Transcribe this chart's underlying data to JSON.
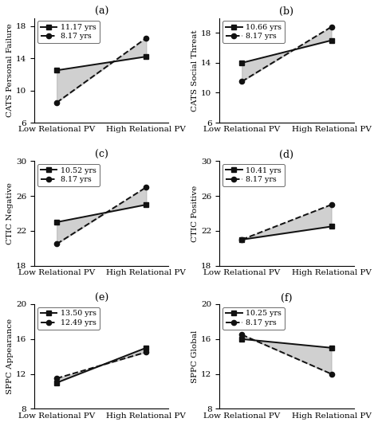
{
  "panels": [
    {
      "label": "(a)",
      "ylabel": "CATS Personal Failure",
      "ylim": [
        6,
        19
      ],
      "yticks": [
        6,
        10,
        14,
        18
      ],
      "legend_lines": [
        "11.17 yrs",
        "8.17 yrs"
      ],
      "line1": [
        12.5,
        14.2
      ],
      "line2": [
        8.5,
        16.5
      ]
    },
    {
      "label": "(b)",
      "ylabel": "CATS Social Threat",
      "ylim": [
        6,
        20
      ],
      "yticks": [
        6,
        10,
        14,
        18
      ],
      "legend_lines": [
        "10.66 yrs",
        "8.17 yrs"
      ],
      "line1": [
        14.0,
        17.0
      ],
      "line2": [
        11.5,
        18.8
      ]
    },
    {
      "label": "(c)",
      "ylabel": "CTIC Negative",
      "ylim": [
        18,
        30
      ],
      "yticks": [
        18,
        22,
        26,
        30
      ],
      "legend_lines": [
        "10.52 yrs",
        "8.17 yrs"
      ],
      "line1": [
        23.0,
        25.0
      ],
      "line2": [
        20.5,
        27.0
      ]
    },
    {
      "label": "(d)",
      "ylabel": "CTIC Positive",
      "ylim": [
        18,
        30
      ],
      "yticks": [
        18,
        22,
        26,
        30
      ],
      "legend_lines": [
        "10.41 yrs",
        "8.17 yrs"
      ],
      "line1": [
        21.0,
        22.5
      ],
      "line2": [
        21.0,
        25.0
      ]
    },
    {
      "label": "(e)",
      "ylabel": "SPPC Appearance",
      "ylim": [
        8,
        20
      ],
      "yticks": [
        8,
        12,
        16,
        20
      ],
      "legend_lines": [
        "13.50 yrs",
        "12.49 yrs"
      ],
      "line1": [
        11.0,
        15.0
      ],
      "line2": [
        11.5,
        14.5
      ]
    },
    {
      "label": "(f)",
      "ylabel": "SPPC Global",
      "ylim": [
        8,
        20
      ],
      "yticks": [
        8,
        12,
        16,
        20
      ],
      "legend_lines": [
        "10.25 yrs",
        "8.17 yrs"
      ],
      "line1": [
        16.0,
        15.0
      ],
      "line2": [
        16.5,
        12.0
      ]
    }
  ],
  "xlabel_left": "Low Relational PV",
  "xlabel_right": "High Relational PV",
  "fill_color": "#aaaaaa",
  "fill_alpha": 0.55,
  "line1_color": "#111111",
  "line1_marker": "s",
  "line1_linestyle": "-",
  "line1_linewidth": 1.4,
  "line1_markersize": 4.5,
  "line2_color": "#111111",
  "line2_marker": "o",
  "line2_linestyle": "--",
  "line2_linewidth": 1.4,
  "line2_markersize": 4.5,
  "x_positions": [
    0,
    1
  ],
  "xlim": [
    -0.25,
    1.25
  ],
  "xlabel_fontsize": 7.5,
  "ylabel_fontsize": 7.5,
  "tick_fontsize": 7.5,
  "legend_fontsize": 6.8,
  "label_fontsize": 9,
  "font_family": "serif"
}
